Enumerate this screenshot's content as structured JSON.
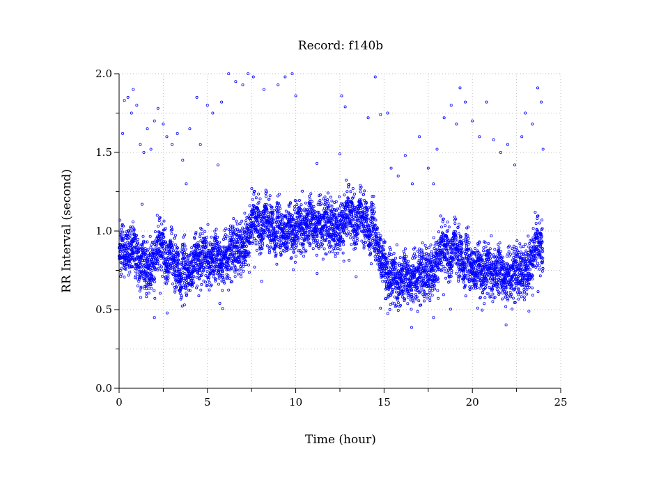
{
  "chart_data": {
    "type": "scatter",
    "title": "Record:  f140b",
    "xlabel": "Time (hour)",
    "ylabel": "RR Interval (second)",
    "xlim": [
      0,
      25
    ],
    "ylim": [
      0,
      2.0
    ],
    "xticks": [
      "0",
      "5",
      "10",
      "15",
      "20",
      "25"
    ],
    "xtick_values": [
      0,
      5,
      10,
      15,
      20,
      25
    ],
    "yticks": [
      "0.0",
      "0.5",
      "1.0",
      "1.5",
      "2.0"
    ],
    "ytick_values": [
      0,
      0.5,
      1.0,
      1.5,
      2.0
    ],
    "grid": true,
    "marker_color": "#0000ff",
    "series_time_range": [
      0,
      24
    ],
    "mean_trend": {
      "hours": [
        0,
        0.5,
        1,
        1.5,
        2,
        2.5,
        3,
        3.5,
        4,
        4.5,
        5,
        5.5,
        6,
        6.5,
        7,
        7.5,
        8,
        9,
        10,
        11,
        12,
        13,
        14,
        14.5,
        15,
        15.5,
        16,
        17,
        18,
        19,
        20,
        21,
        22,
        23,
        23.5,
        24
      ],
      "rr": [
        0.85,
        0.9,
        0.85,
        0.8,
        0.82,
        0.85,
        0.78,
        0.75,
        0.78,
        0.88,
        0.85,
        0.85,
        0.86,
        0.92,
        0.95,
        1.0,
        1.02,
        1.02,
        1.05,
        1.08,
        1.08,
        1.05,
        1.05,
        1.0,
        0.8,
        0.72,
        0.72,
        0.75,
        0.82,
        0.85,
        0.8,
        0.78,
        0.75,
        0.8,
        0.85,
        0.85
      ],
      "spread": 0.11
    },
    "outliers": [
      [
        0.2,
        1.62
      ],
      [
        0.3,
        1.83
      ],
      [
        0.5,
        1.85
      ],
      [
        0.7,
        1.75
      ],
      [
        0.8,
        1.9
      ],
      [
        1.0,
        1.8
      ],
      [
        1.2,
        1.55
      ],
      [
        1.4,
        1.5
      ],
      [
        1.6,
        1.65
      ],
      [
        1.8,
        1.52
      ],
      [
        2.0,
        1.7
      ],
      [
        2.2,
        1.78
      ],
      [
        2.5,
        1.68
      ],
      [
        2.7,
        1.6
      ],
      [
        3.0,
        1.55
      ],
      [
        3.3,
        1.62
      ],
      [
        3.6,
        1.45
      ],
      [
        3.8,
        1.3
      ],
      [
        4.0,
        1.65
      ],
      [
        4.4,
        1.85
      ],
      [
        4.6,
        1.55
      ],
      [
        5.0,
        1.8
      ],
      [
        5.3,
        1.75
      ],
      [
        5.6,
        1.42
      ],
      [
        5.8,
        1.82
      ],
      [
        6.2,
        2.0
      ],
      [
        6.6,
        1.95
      ],
      [
        7.0,
        1.93
      ],
      [
        7.3,
        2.0
      ],
      [
        7.6,
        1.98
      ],
      [
        8.2,
        1.9
      ],
      [
        9.0,
        1.93
      ],
      [
        9.4,
        1.98
      ],
      [
        9.8,
        2.0
      ],
      [
        10.0,
        1.86
      ],
      [
        12.6,
        1.86
      ],
      [
        12.8,
        1.79
      ],
      [
        14.1,
        1.72
      ],
      [
        14.5,
        1.98
      ],
      [
        14.8,
        1.74
      ],
      [
        15.2,
        1.75
      ],
      [
        15.4,
        1.4
      ],
      [
        15.8,
        1.35
      ],
      [
        16.2,
        1.48
      ],
      [
        16.6,
        1.3
      ],
      [
        17.0,
        1.6
      ],
      [
        17.5,
        1.4
      ],
      [
        17.8,
        1.3
      ],
      [
        18.0,
        1.52
      ],
      [
        18.4,
        1.72
      ],
      [
        18.8,
        1.8
      ],
      [
        19.1,
        1.68
      ],
      [
        19.3,
        1.91
      ],
      [
        19.6,
        1.82
      ],
      [
        20.0,
        1.7
      ],
      [
        20.4,
        1.6
      ],
      [
        20.8,
        1.82
      ],
      [
        21.2,
        1.58
      ],
      [
        21.6,
        1.5
      ],
      [
        22.0,
        1.55
      ],
      [
        22.4,
        1.42
      ],
      [
        22.8,
        1.6
      ],
      [
        23.0,
        1.75
      ],
      [
        23.4,
        1.68
      ],
      [
        23.7,
        1.91
      ],
      [
        23.9,
        1.82
      ],
      [
        24.0,
        1.52
      ],
      [
        2.0,
        0.45
      ],
      [
        17.8,
        0.45
      ],
      [
        23.2,
        0.49
      ],
      [
        20.3,
        0.51
      ],
      [
        14.8,
        0.51
      ],
      [
        1.3,
        1.17
      ],
      [
        11.2,
        1.43
      ],
      [
        12.5,
        1.49
      ],
      [
        5.7,
        0.54
      ],
      [
        3.7,
        0.53
      ]
    ]
  }
}
